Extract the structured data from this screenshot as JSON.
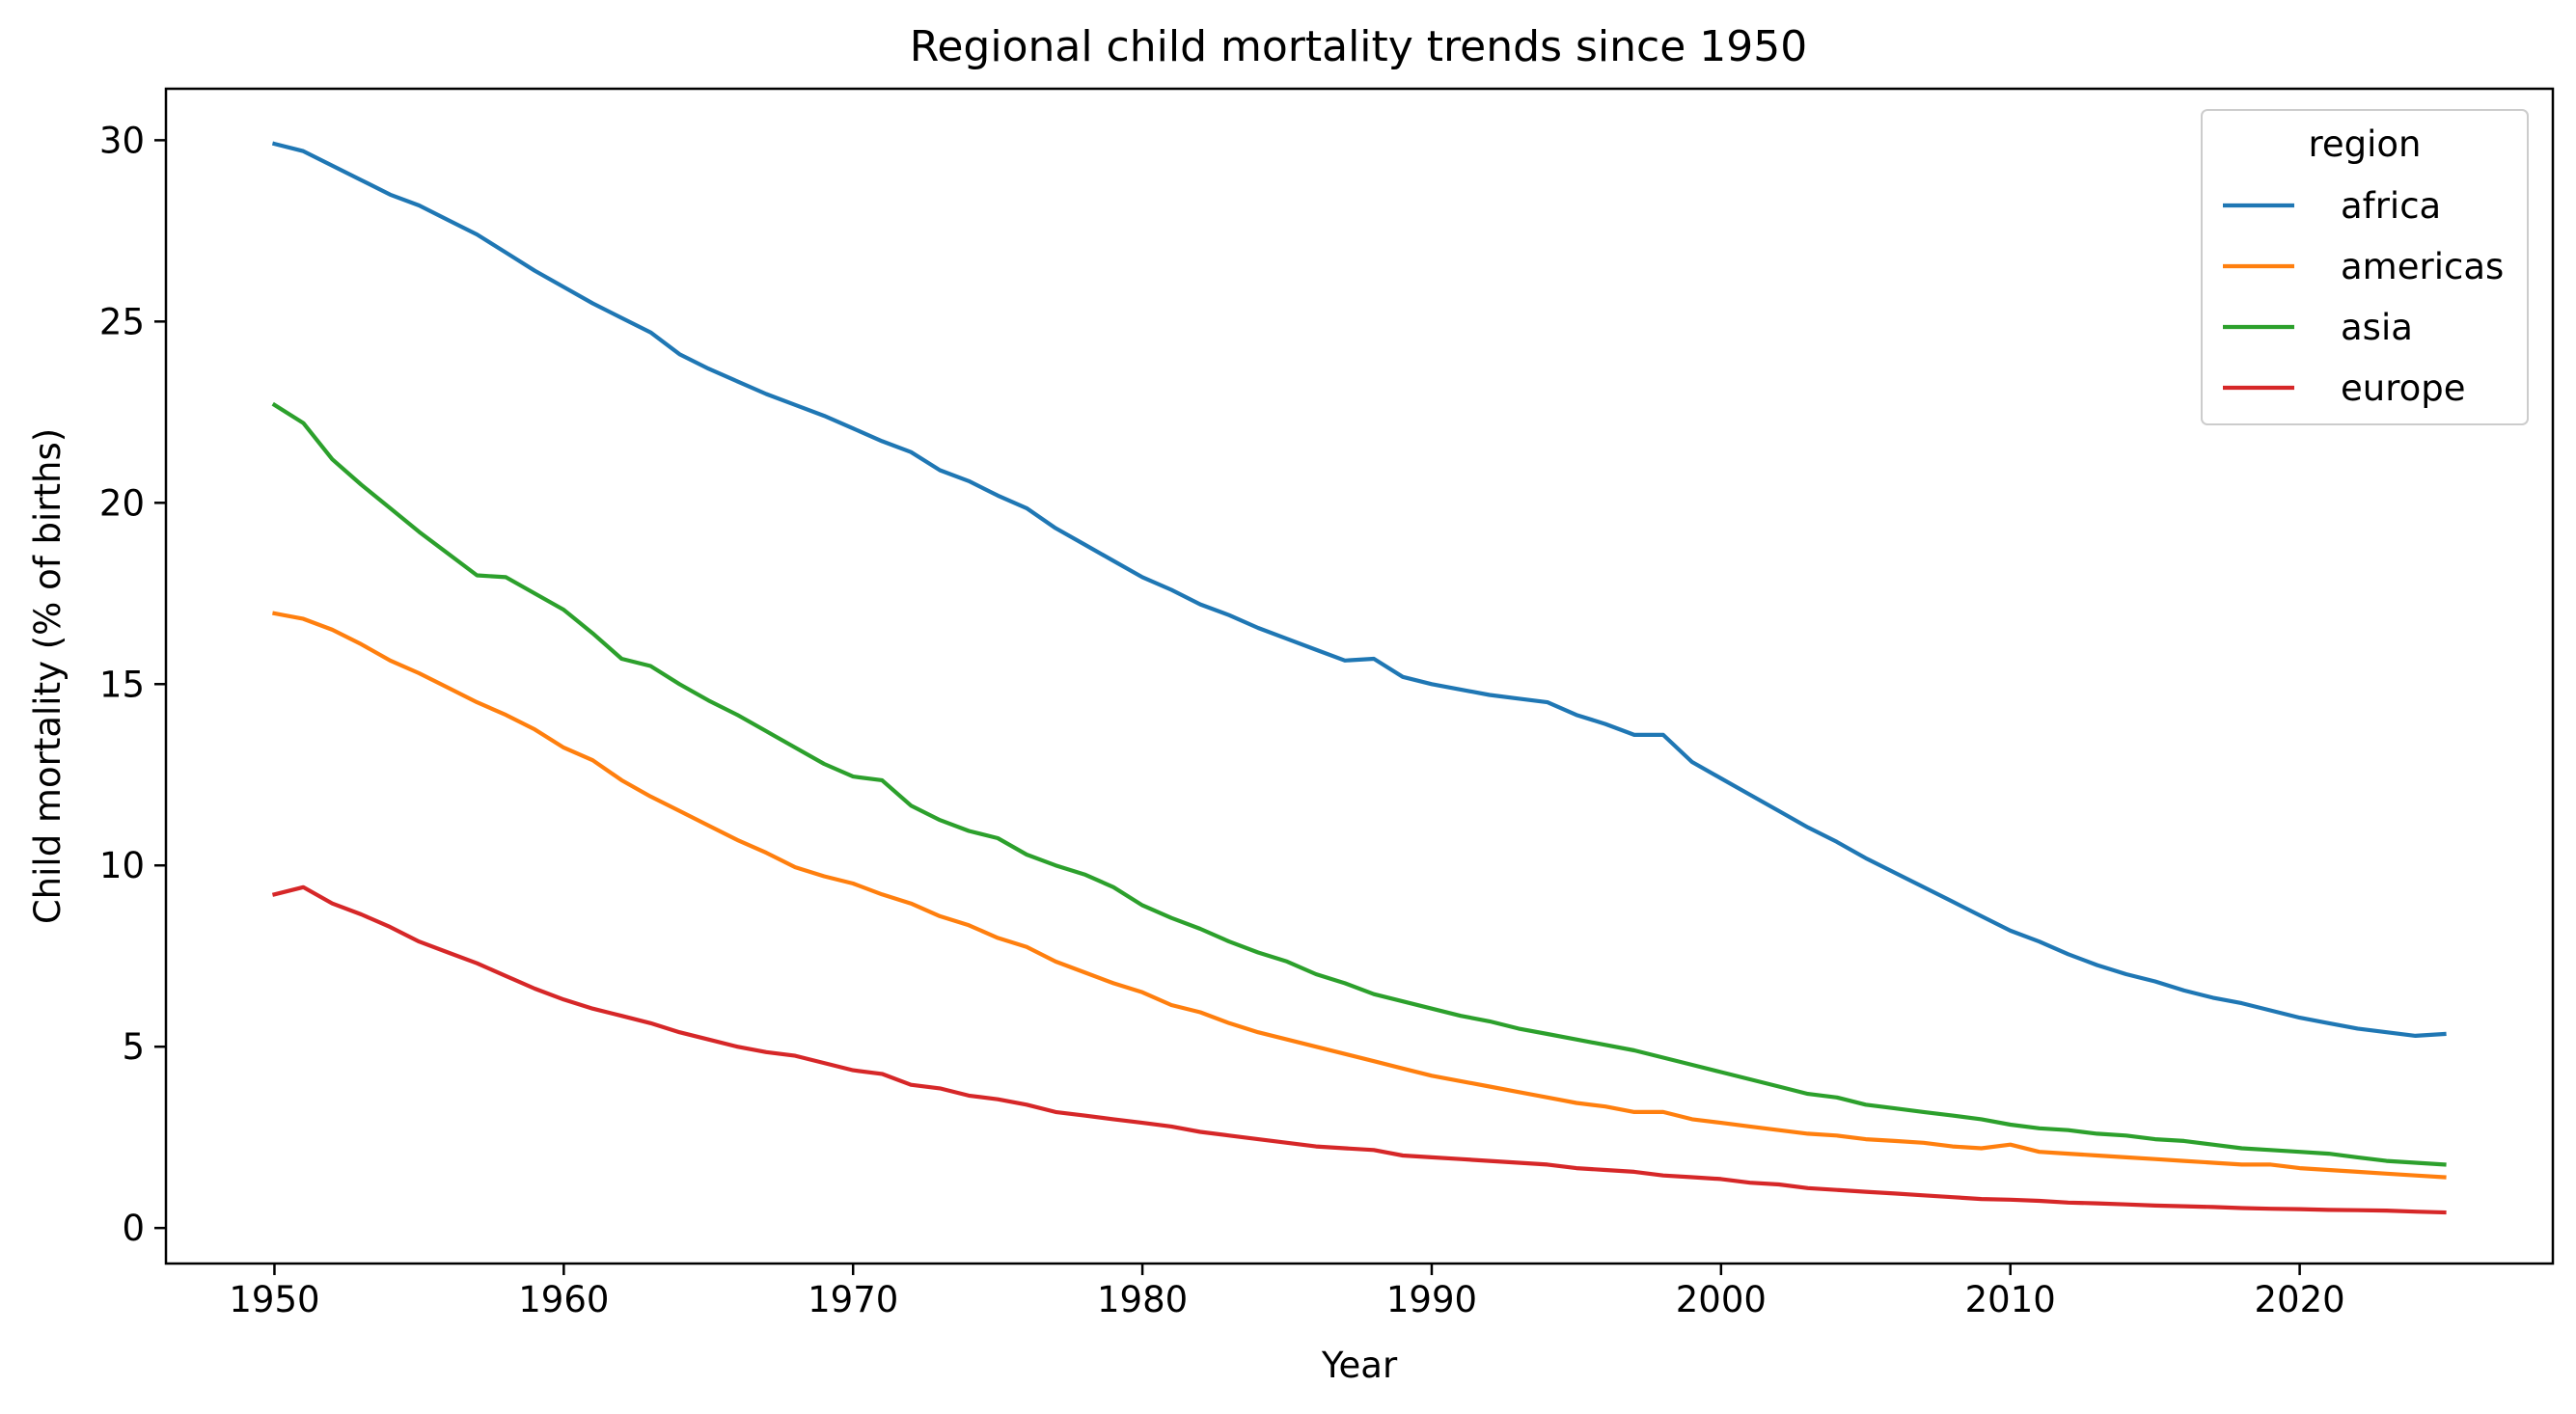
{
  "chart_data": {
    "type": "line",
    "title": "Regional child mortality trends since 1950",
    "xlabel": "Year",
    "ylabel": "Child mortality (% of births)",
    "xlim": [
      1946.25,
      2028.75
    ],
    "ylim": [
      -0.98,
      31.42
    ],
    "xticks": [
      1950,
      1960,
      1970,
      1980,
      1990,
      2000,
      2010,
      2020
    ],
    "yticks": [
      0,
      5,
      10,
      15,
      20,
      25,
      30
    ],
    "grid": false,
    "legend": {
      "title": "region",
      "position": "top-right"
    },
    "x": [
      1950,
      1951,
      1952,
      1953,
      1954,
      1955,
      1956,
      1957,
      1958,
      1959,
      1960,
      1961,
      1962,
      1963,
      1964,
      1965,
      1966,
      1967,
      1968,
      1969,
      1970,
      1971,
      1972,
      1973,
      1974,
      1975,
      1976,
      1977,
      1978,
      1979,
      1980,
      1981,
      1982,
      1983,
      1984,
      1985,
      1986,
      1987,
      1988,
      1989,
      1990,
      1991,
      1992,
      1993,
      1994,
      1995,
      1996,
      1997,
      1998,
      1999,
      2000,
      2001,
      2002,
      2003,
      2004,
      2005,
      2006,
      2007,
      2008,
      2009,
      2010,
      2011,
      2012,
      2013,
      2014,
      2015,
      2016,
      2017,
      2018,
      2019,
      2020,
      2021,
      2022,
      2023,
      2024,
      2025
    ],
    "series": [
      {
        "name": "africa",
        "color": "#1f77b4",
        "values": [
          29.9,
          29.7,
          29.3,
          28.9,
          28.5,
          28.2,
          27.8,
          27.4,
          26.9,
          26.4,
          25.95,
          25.5,
          25.1,
          24.7,
          24.1,
          23.7,
          23.35,
          23.0,
          22.7,
          22.4,
          22.05,
          21.7,
          21.4,
          20.9,
          20.6,
          20.2,
          19.85,
          19.3,
          18.85,
          18.4,
          17.95,
          17.6,
          17.2,
          16.9,
          16.55,
          16.25,
          15.95,
          15.65,
          15.7,
          15.2,
          15.0,
          14.85,
          14.7,
          14.6,
          14.5,
          14.15,
          13.9,
          13.6,
          13.6,
          12.85,
          12.4,
          11.95,
          11.5,
          11.05,
          10.65,
          10.2,
          9.8,
          9.4,
          9.0,
          8.6,
          8.2,
          7.9,
          7.55,
          7.25,
          7.0,
          6.8,
          6.55,
          6.35,
          6.2,
          6.0,
          5.8,
          5.65,
          5.5,
          5.4,
          5.3,
          5.35
        ]
      },
      {
        "name": "americas",
        "color": "#ff7f0e",
        "values": [
          16.95,
          16.8,
          16.5,
          16.1,
          15.65,
          15.3,
          14.9,
          14.5,
          14.15,
          13.75,
          13.25,
          12.9,
          12.35,
          11.9,
          11.5,
          11.1,
          10.7,
          10.35,
          9.95,
          9.7,
          9.5,
          9.2,
          8.95,
          8.6,
          8.35,
          8.0,
          7.75,
          7.35,
          7.05,
          6.75,
          6.5,
          6.15,
          5.95,
          5.65,
          5.4,
          5.2,
          5.0,
          4.8,
          4.6,
          4.4,
          4.2,
          4.05,
          3.9,
          3.75,
          3.6,
          3.45,
          3.35,
          3.2,
          3.2,
          3.0,
          2.9,
          2.8,
          2.7,
          2.6,
          2.55,
          2.45,
          2.4,
          2.35,
          2.25,
          2.2,
          2.3,
          2.1,
          2.05,
          2.0,
          1.95,
          1.9,
          1.85,
          1.8,
          1.75,
          1.75,
          1.65,
          1.6,
          1.55,
          1.5,
          1.45,
          1.4
        ]
      },
      {
        "name": "asia",
        "color": "#2ca02c",
        "values": [
          22.7,
          22.2,
          21.2,
          20.5,
          19.85,
          19.2,
          18.6,
          18.0,
          17.95,
          17.5,
          17.05,
          16.4,
          15.7,
          15.5,
          15.0,
          14.55,
          14.15,
          13.7,
          13.25,
          12.8,
          12.45,
          12.35,
          11.65,
          11.25,
          10.95,
          10.75,
          10.3,
          10.0,
          9.75,
          9.4,
          8.9,
          8.55,
          8.25,
          7.9,
          7.6,
          7.35,
          7.0,
          6.75,
          6.45,
          6.25,
          6.05,
          5.85,
          5.7,
          5.5,
          5.35,
          5.2,
          5.05,
          4.9,
          4.7,
          4.5,
          4.3,
          4.1,
          3.9,
          3.7,
          3.6,
          3.4,
          3.3,
          3.2,
          3.1,
          3.0,
          2.85,
          2.75,
          2.7,
          2.6,
          2.55,
          2.45,
          2.4,
          2.3,
          2.2,
          2.15,
          2.1,
          2.05,
          1.95,
          1.85,
          1.8,
          1.75
        ]
      },
      {
        "name": "europe",
        "color": "#d62728",
        "values": [
          9.2,
          9.4,
          8.95,
          8.65,
          8.3,
          7.9,
          7.6,
          7.3,
          6.95,
          6.6,
          6.3,
          6.05,
          5.85,
          5.65,
          5.4,
          5.2,
          5.0,
          4.85,
          4.75,
          4.55,
          4.35,
          4.25,
          3.95,
          3.85,
          3.65,
          3.55,
          3.4,
          3.2,
          3.1,
          3.0,
          2.9,
          2.8,
          2.65,
          2.55,
          2.45,
          2.35,
          2.25,
          2.2,
          2.15,
          2.0,
          1.95,
          1.9,
          1.85,
          1.8,
          1.75,
          1.65,
          1.6,
          1.55,
          1.45,
          1.4,
          1.35,
          1.25,
          1.2,
          1.1,
          1.05,
          1.0,
          0.95,
          0.9,
          0.85,
          0.8,
          0.78,
          0.75,
          0.7,
          0.68,
          0.65,
          0.62,
          0.6,
          0.58,
          0.55,
          0.53,
          0.52,
          0.5,
          0.49,
          0.48,
          0.45,
          0.43
        ]
      }
    ]
  }
}
